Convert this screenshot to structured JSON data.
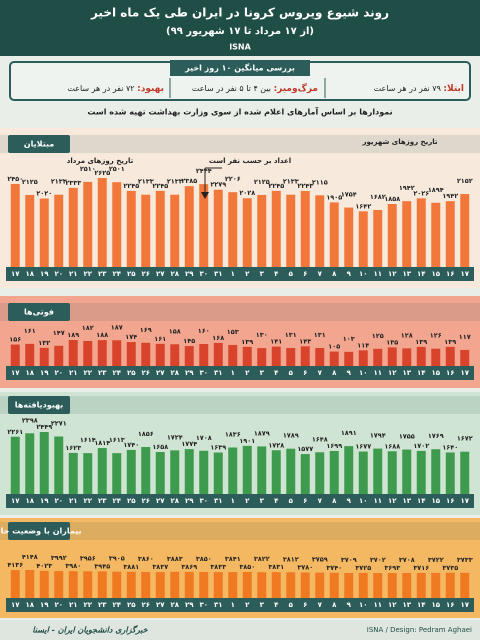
{
  "header": {
    "title": "روند شیوع ویروس کرونا در ایران طی یک ماه اخیر",
    "subtitle": "(از ۱۷ مرداد تا ۱۷ شهریور ۹۹)",
    "brand": "ISNA"
  },
  "summary": {
    "title": "بررسی میانگین ۱۰ روز اخیر",
    "items": [
      {
        "label": "ابتلا:",
        "text": "۷۹ نفر در هر ساعت"
      },
      {
        "label": "مرگ‌ومیر:",
        "text": "بین ۴ تا ۵ نفر در ساعت"
      },
      {
        "label": "بهبود:",
        "text": "۷۲ نفر در هر ساعت"
      }
    ]
  },
  "note": "نمودارها بر اساس آمارهای اعلام شده از سوی وزارت بهداشت تهیه شده است",
  "chart_data": [
    {
      "type": "bar",
      "title": "مبتلایان",
      "color": "#f2773a",
      "background": "#f7eadc",
      "annotations": [
        "تاریخ روزهای مرداد",
        "اعداد بر حسب نفر است",
        "تاریخ روزهای شهریور"
      ],
      "categories": [
        "۱۷",
        "۱۸",
        "۱۹",
        "۲۰",
        "۲۱",
        "۲۲",
        "۲۳",
        "۲۴",
        "۲۵",
        "۲۶",
        "۲۷",
        "۲۸",
        "۲۹",
        "۳۰",
        "۳۱",
        "۱",
        "۲",
        "۳",
        "۴",
        "۵",
        "۶",
        "۷",
        "۸",
        "۹",
        "۱۰",
        "۱۱",
        "۱۲",
        "۱۳",
        "۱۴",
        "۱۵",
        "۱۶",
        "۱۷"
      ],
      "values": [
        2450,
        2125,
        2020,
        2133,
        2333,
        2510,
        2625,
        2501,
        2245,
        2133,
        2245,
        2133,
        2385,
        2444,
        2279,
        2206,
        2028,
        2125,
        2245,
        2133,
        2243,
        2115,
        1905,
        1754,
        1642,
        1682,
        1858,
        1942,
        2026,
        1894,
        1942,
        2152
      ],
      "value_labels": [
        "۲۴۵۰",
        "۲۱۲۵",
        "۲۰۲۰",
        "۲۱۳۳",
        "۲۳۳۳",
        "۲۵۱۰",
        "۲۶۲۵",
        "۲۵۰۱",
        "۲۲۴۵",
        "۲۱۳۳",
        "۲۲۴۵",
        "۲۱۳۳",
        "۲۳۸۵",
        "۲۴۴۴",
        "۲۲۷۹",
        "۲۲۰۶",
        "۲۰۲۸",
        "۲۱۲۵",
        "۲۲۴۵",
        "۲۱۳۳",
        "۲۲۴۳",
        "۲۱۱۵",
        "۱۹۰۵",
        "۱۷۵۴",
        "۱۶۴۲",
        "۱۶۸۲",
        "۱۸۵۸",
        "۱۹۴۲",
        "۲۰۲۶",
        "۱۸۹۴",
        "۱۹۴۲",
        "۲۱۵۲"
      ]
    },
    {
      "type": "bar",
      "title": "فوتی‌ها",
      "color": "#d8432c",
      "background": "#f3a68f",
      "categories": [
        "۱۷",
        "۱۸",
        "۱۹",
        "۲۰",
        "۲۱",
        "۲۲",
        "۲۳",
        "۲۴",
        "۲۵",
        "۲۶",
        "۲۷",
        "۲۸",
        "۲۹",
        "۳۰",
        "۳۱",
        "۱",
        "۲",
        "۳",
        "۴",
        "۵",
        "۶",
        "۷",
        "۸",
        "۹",
        "۱۰",
        "۱۱",
        "۱۲",
        "۱۳",
        "۱۴",
        "۱۵",
        "۱۶",
        "۱۷"
      ],
      "values": [
        156,
        161,
        132,
        147,
        189,
        182,
        188,
        187,
        174,
        169,
        161,
        158,
        145,
        160,
        168,
        153,
        139,
        130,
        141,
        131,
        143,
        131,
        105,
        103,
        114,
        125,
        135,
        128,
        139,
        126,
        139,
        117
      ],
      "value_labels": [
        "۱۵۶",
        "۱۶۱",
        "۱۳۲",
        "۱۴۷",
        "۱۸۹",
        "۱۸۲",
        "۱۸۸",
        "۱۸۷",
        "۱۷۴",
        "۱۶۹",
        "۱۶۱",
        "۱۵۸",
        "۱۴۵",
        "۱۶۰",
        "۱۶۸",
        "۱۵۳",
        "۱۳۹",
        "۱۳۰",
        "۱۴۱",
        "۱۳۱",
        "۱۴۳",
        "۱۳۱",
        "۱۰۵",
        "۱۰۳",
        "۱۱۴",
        "۱۲۵",
        "۱۳۵",
        "۱۲۸",
        "۱۳۹",
        "۱۲۶",
        "۱۳۹",
        "۱۱۷"
      ]
    },
    {
      "type": "bar",
      "title": "بهبودیافته‌ها",
      "color": "#3e9a4d",
      "background": "#cfe4d2",
      "categories": [
        "۱۷",
        "۱۸",
        "۱۹",
        "۲۰",
        "۲۱",
        "۲۲",
        "۲۳",
        "۲۴",
        "۲۵",
        "۲۶",
        "۲۷",
        "۲۸",
        "۲۹",
        "۳۰",
        "۳۱",
        "۱",
        "۲",
        "۳",
        "۴",
        "۵",
        "۶",
        "۷",
        "۸",
        "۹",
        "۱۰",
        "۱۱",
        "۱۲",
        "۱۳",
        "۱۴",
        "۱۵",
        "۱۶",
        "۱۷"
      ],
      "values": [
        2261,
        2398,
        2449,
        2271,
        1623,
        1614,
        1814,
        1613,
        1740,
        1856,
        1658,
        1724,
        1774,
        1708,
        1639,
        1836,
        1901,
        1879,
        1728,
        1789,
        1577,
        1648,
        1699,
        1891,
        1677,
        1794,
        1688,
        1755,
        1702,
        1769,
        1640,
        1672
      ],
      "value_labels": [
        "۲۲۶۱",
        "۲۳۹۸",
        "۲۴۴۹",
        "۲۲۷۱",
        "۱۶۲۳",
        "۱۶۱۴",
        "۱۸۱۴",
        "۱۶۱۳",
        "۱۷۴۰",
        "۱۸۵۶",
        "۱۶۵۸",
        "۱۷۲۴",
        "۱۷۷۴",
        "۱۷۰۸",
        "۱۶۳۹",
        "۱۸۳۶",
        "۱۹۰۱",
        "۱۸۷۹",
        "۱۷۲۸",
        "۱۷۸۹",
        "۱۵۷۷",
        "۱۶۴۸",
        "۱۶۹۹",
        "۱۸۹۱",
        "۱۶۷۷",
        "۱۷۹۴",
        "۱۶۸۸",
        "۱۷۵۵",
        "۱۷۰۲",
        "۱۷۶۹",
        "۱۶۴۰",
        "۱۶۷۲"
      ]
    },
    {
      "type": "bar",
      "title": "بیماران با وضعیت حاد",
      "color": "#ef7a22",
      "background": "#f5b862",
      "categories": [
        "۱۷",
        "۱۸",
        "۱۹",
        "۲۰",
        "۲۱",
        "۲۲",
        "۲۳",
        "۲۴",
        "۲۵",
        "۲۶",
        "۲۷",
        "۲۸",
        "۲۹",
        "۳۰",
        "۳۱",
        "۱",
        "۲",
        "۳",
        "۴",
        "۵",
        "۶",
        "۷",
        "۸",
        "۹",
        "۱۰",
        "۱۱",
        "۱۲",
        "۱۳",
        "۱۴",
        "۱۵",
        "۱۶",
        "۱۷"
      ],
      "values": [
        4136,
        4148,
        4023,
        3992,
        3980,
        3956,
        3945,
        3905,
        3881,
        3860,
        3837,
        3883,
        3869,
        3850,
        3833,
        3841,
        3850,
        3822,
        3831,
        3812,
        3780,
        3759,
        3740,
        3709,
        3725,
        3702,
        3693,
        3708,
        3716,
        3722,
        3735,
        3733
      ],
      "value_labels": [
        "۴۱۳۶",
        "۴۱۴۸",
        "۴۰۲۳",
        "۳۹۹۲",
        "۳۹۸۰",
        "۳۹۵۶",
        "۳۹۴۵",
        "۳۹۰۵",
        "۳۸۸۱",
        "۳۸۶۰",
        "۳۸۳۷",
        "۳۸۸۳",
        "۳۸۶۹",
        "۳۸۵۰",
        "۳۸۳۳",
        "۳۸۴۱",
        "۳۸۵۰",
        "۳۸۲۲",
        "۳۸۳۱",
        "۳۸۱۲",
        "۳۷۸۰",
        "۳۷۵۹",
        "۳۷۴۰",
        "۳۷۰۹",
        "۳۷۲۵",
        "۳۷۰۲",
        "۳۶۹۳",
        "۳۷۰۸",
        "۳۷۱۶",
        "۳۷۲۲",
        "۳۷۳۵",
        "۳۷۳۳"
      ]
    }
  ],
  "footer": {
    "credit": "ISNA / Design: Pedram Aghaei",
    "agency": "خبرگزاری دانشجویان ایران - ایسنا"
  }
}
